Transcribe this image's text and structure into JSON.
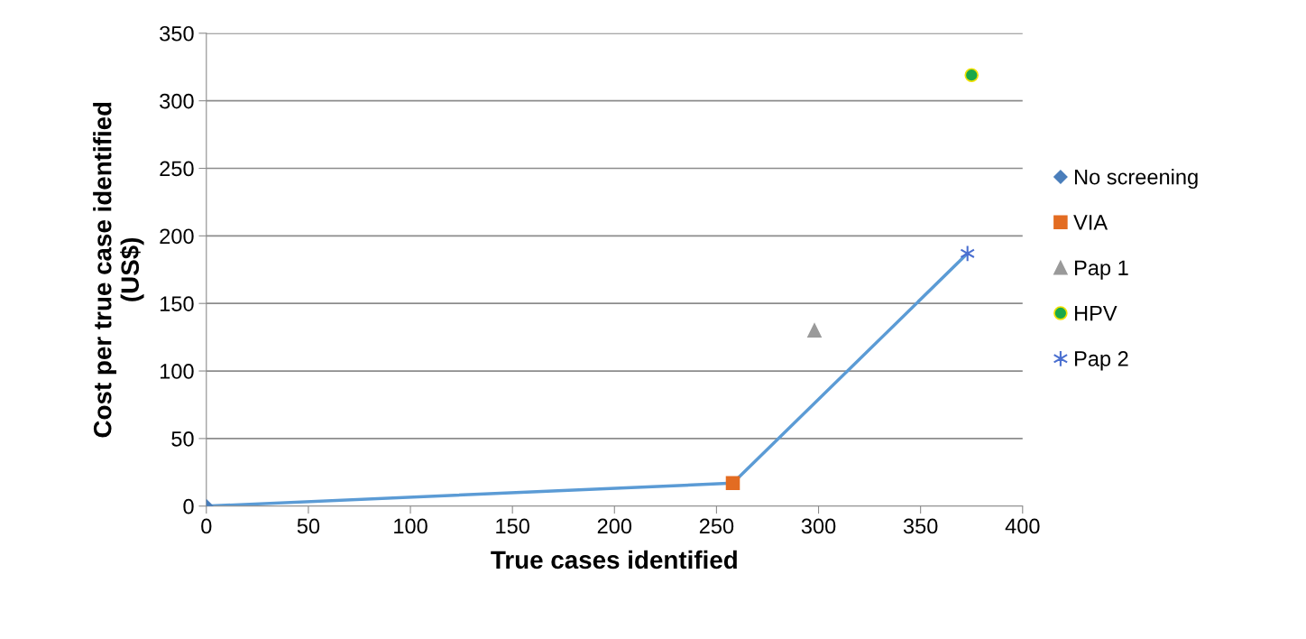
{
  "chart_data": {
    "type": "scatter",
    "xlabel": "True cases identified",
    "ylabel": "Cost per true case identified\n(US$)",
    "xlim": [
      0,
      400
    ],
    "xticks": [
      0,
      50,
      100,
      150,
      200,
      250,
      300,
      350,
      400
    ],
    "ylim": [
      0,
      350
    ],
    "yticks": [
      0,
      50,
      100,
      150,
      200,
      250,
      300,
      350
    ],
    "grid": "y",
    "legend": "right",
    "series": [
      {
        "type": "line",
        "color": "#5b9bd5",
        "x": [
          0,
          258,
          373
        ],
        "values": [
          0,
          17,
          187
        ],
        "marker": "none",
        "line_style": "solid"
      },
      {
        "name": "No screening",
        "color": "#4a7ebb",
        "x": [
          0
        ],
        "values": [
          0
        ],
        "marker": "diamond"
      },
      {
        "name": "VIA",
        "color": "#e36c22",
        "x": [
          258
        ],
        "values": [
          17
        ],
        "marker": "square"
      },
      {
        "name": "Pap 1",
        "color": "#9a9a9a",
        "x": [
          298
        ],
        "values": [
          130
        ],
        "marker": "triangle"
      },
      {
        "name": "HPV",
        "color": "#1aa84a",
        "x": [
          375
        ],
        "values": [
          319
        ],
        "marker": "circle"
      },
      {
        "name": "Pap 2",
        "color": "#4a6fd0",
        "x": [
          373
        ],
        "values": [
          187
        ],
        "marker": "cross"
      }
    ]
  }
}
